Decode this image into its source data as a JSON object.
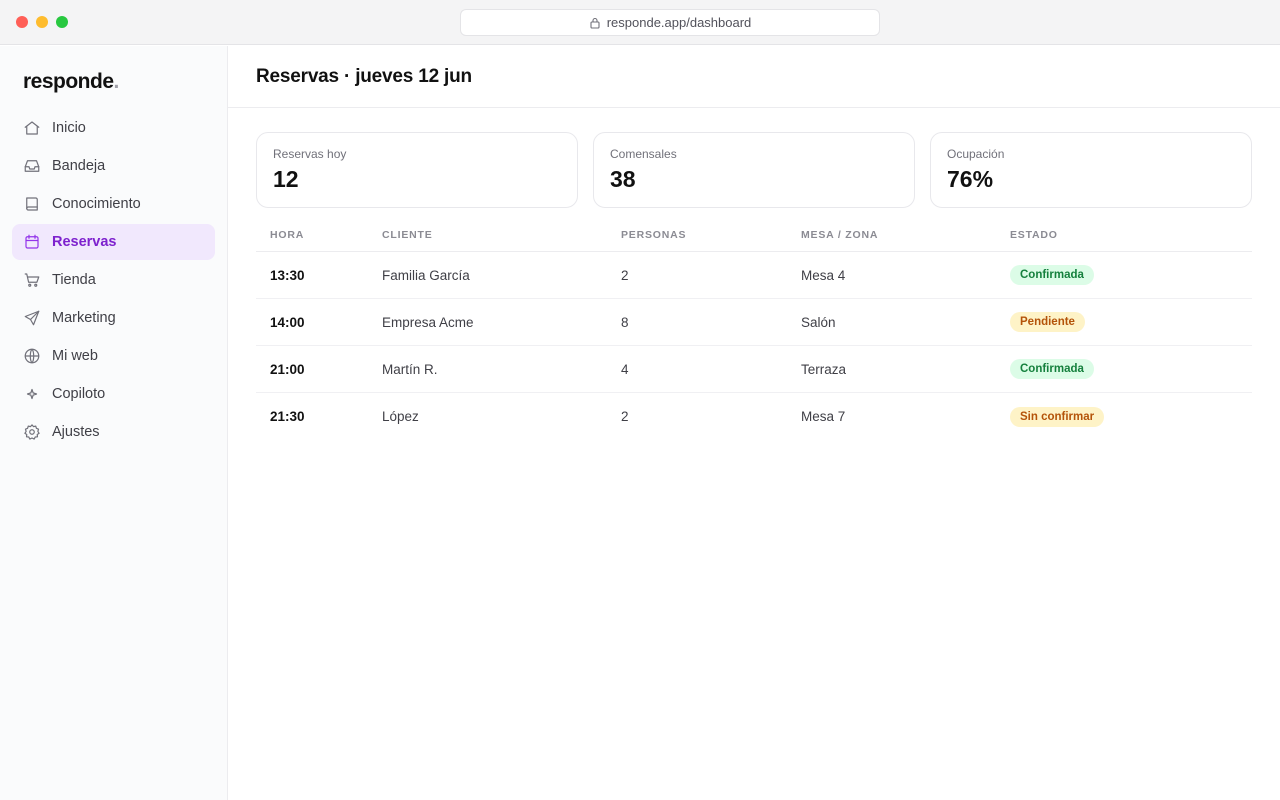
{
  "browser": {
    "url": "responde.app/dashboard",
    "icon": "lock-icon"
  },
  "sidebar": {
    "logo": "responde",
    "logo_dot": ".",
    "items": [
      {
        "label": "Inicio",
        "icon": "home-icon",
        "active": false
      },
      {
        "label": "Bandeja",
        "icon": "inbox-icon",
        "active": false
      },
      {
        "label": "Conocimiento",
        "icon": "book-icon",
        "active": false
      },
      {
        "label": "Reservas",
        "icon": "calendar-icon",
        "active": true
      },
      {
        "label": "Tienda",
        "icon": "cart-icon",
        "active": false
      },
      {
        "label": "Marketing",
        "icon": "send-icon",
        "active": false
      },
      {
        "label": "Mi web",
        "icon": "globe-icon",
        "active": false
      },
      {
        "label": "Copiloto",
        "icon": "sparkle-icon",
        "active": false
      },
      {
        "label": "Ajustes",
        "icon": "gear-icon",
        "active": false
      }
    ]
  },
  "header": {
    "title": "Reservas · jueves 12 jun"
  },
  "stats": [
    {
      "label": "Reservas hoy",
      "value": "12"
    },
    {
      "label": "Comensales",
      "value": "38"
    },
    {
      "label": "Ocupación",
      "value": "76%"
    }
  ],
  "table": {
    "columns": [
      "HORA",
      "CLIENTE",
      "PERSONAS",
      "MESA / ZONA",
      "ESTADO"
    ],
    "rows": [
      {
        "hora": "13:30",
        "cliente": "Familia García",
        "personas": "2",
        "mesa": "Mesa 4",
        "estado": "Confirmada",
        "estado_color": "#15803d"
      },
      {
        "hora": "14:00",
        "cliente": "Empresa Acme",
        "personas": "8",
        "mesa": "Salón",
        "estado": "Pendiente",
        "estado_color": "#b45309"
      },
      {
        "hora": "21:00",
        "cliente": "Martín R.",
        "personas": "4",
        "mesa": "Terraza",
        "estado": "Confirmada",
        "estado_color": "#15803d"
      },
      {
        "hora": "21:30",
        "cliente": "López",
        "personas": "2",
        "mesa": "Mesa 7",
        "estado": "Sin confirmar",
        "estado_color": "#b45309"
      }
    ]
  },
  "colors": {
    "accent": "#9333ea",
    "active_bg": "#f1e8fd",
    "confirmed": "#dcfce7",
    "pending": "#fef3c7"
  }
}
